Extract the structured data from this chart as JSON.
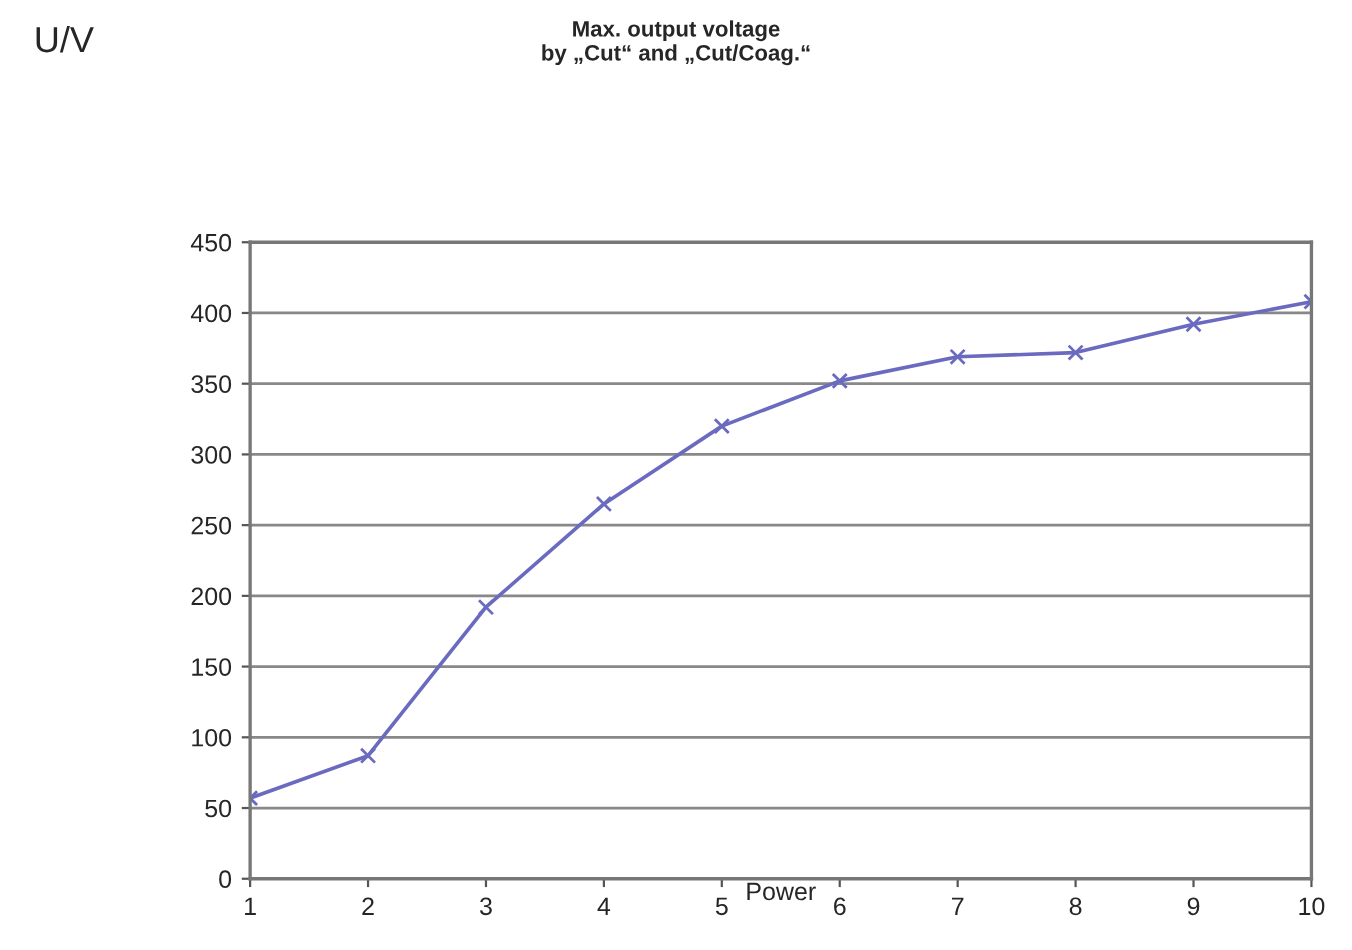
{
  "chart_data": {
    "type": "line",
    "title": "Max. output voltage\nby „Cut“ and „Cut/Coag.“",
    "annotations": [
      "U/V"
    ],
    "xlabel": "Power",
    "x": [
      1,
      2,
      3,
      4,
      5,
      6,
      7,
      8,
      9,
      10
    ],
    "series": [
      {
        "color": "#6a6ac0",
        "values": [
          57,
          87,
          192,
          265,
          320,
          352,
          369,
          372,
          392,
          408
        ]
      }
    ],
    "xlim": [
      1,
      10
    ],
    "xticks": [
      1,
      2,
      3,
      4,
      5,
      6,
      7,
      8,
      9,
      10
    ],
    "ylim": [
      0,
      450
    ],
    "yticks": [
      0,
      50,
      100,
      150,
      200,
      250,
      300,
      350,
      400,
      450
    ],
    "grid": "y",
    "marker": "cross",
    "line_style": "solid"
  }
}
